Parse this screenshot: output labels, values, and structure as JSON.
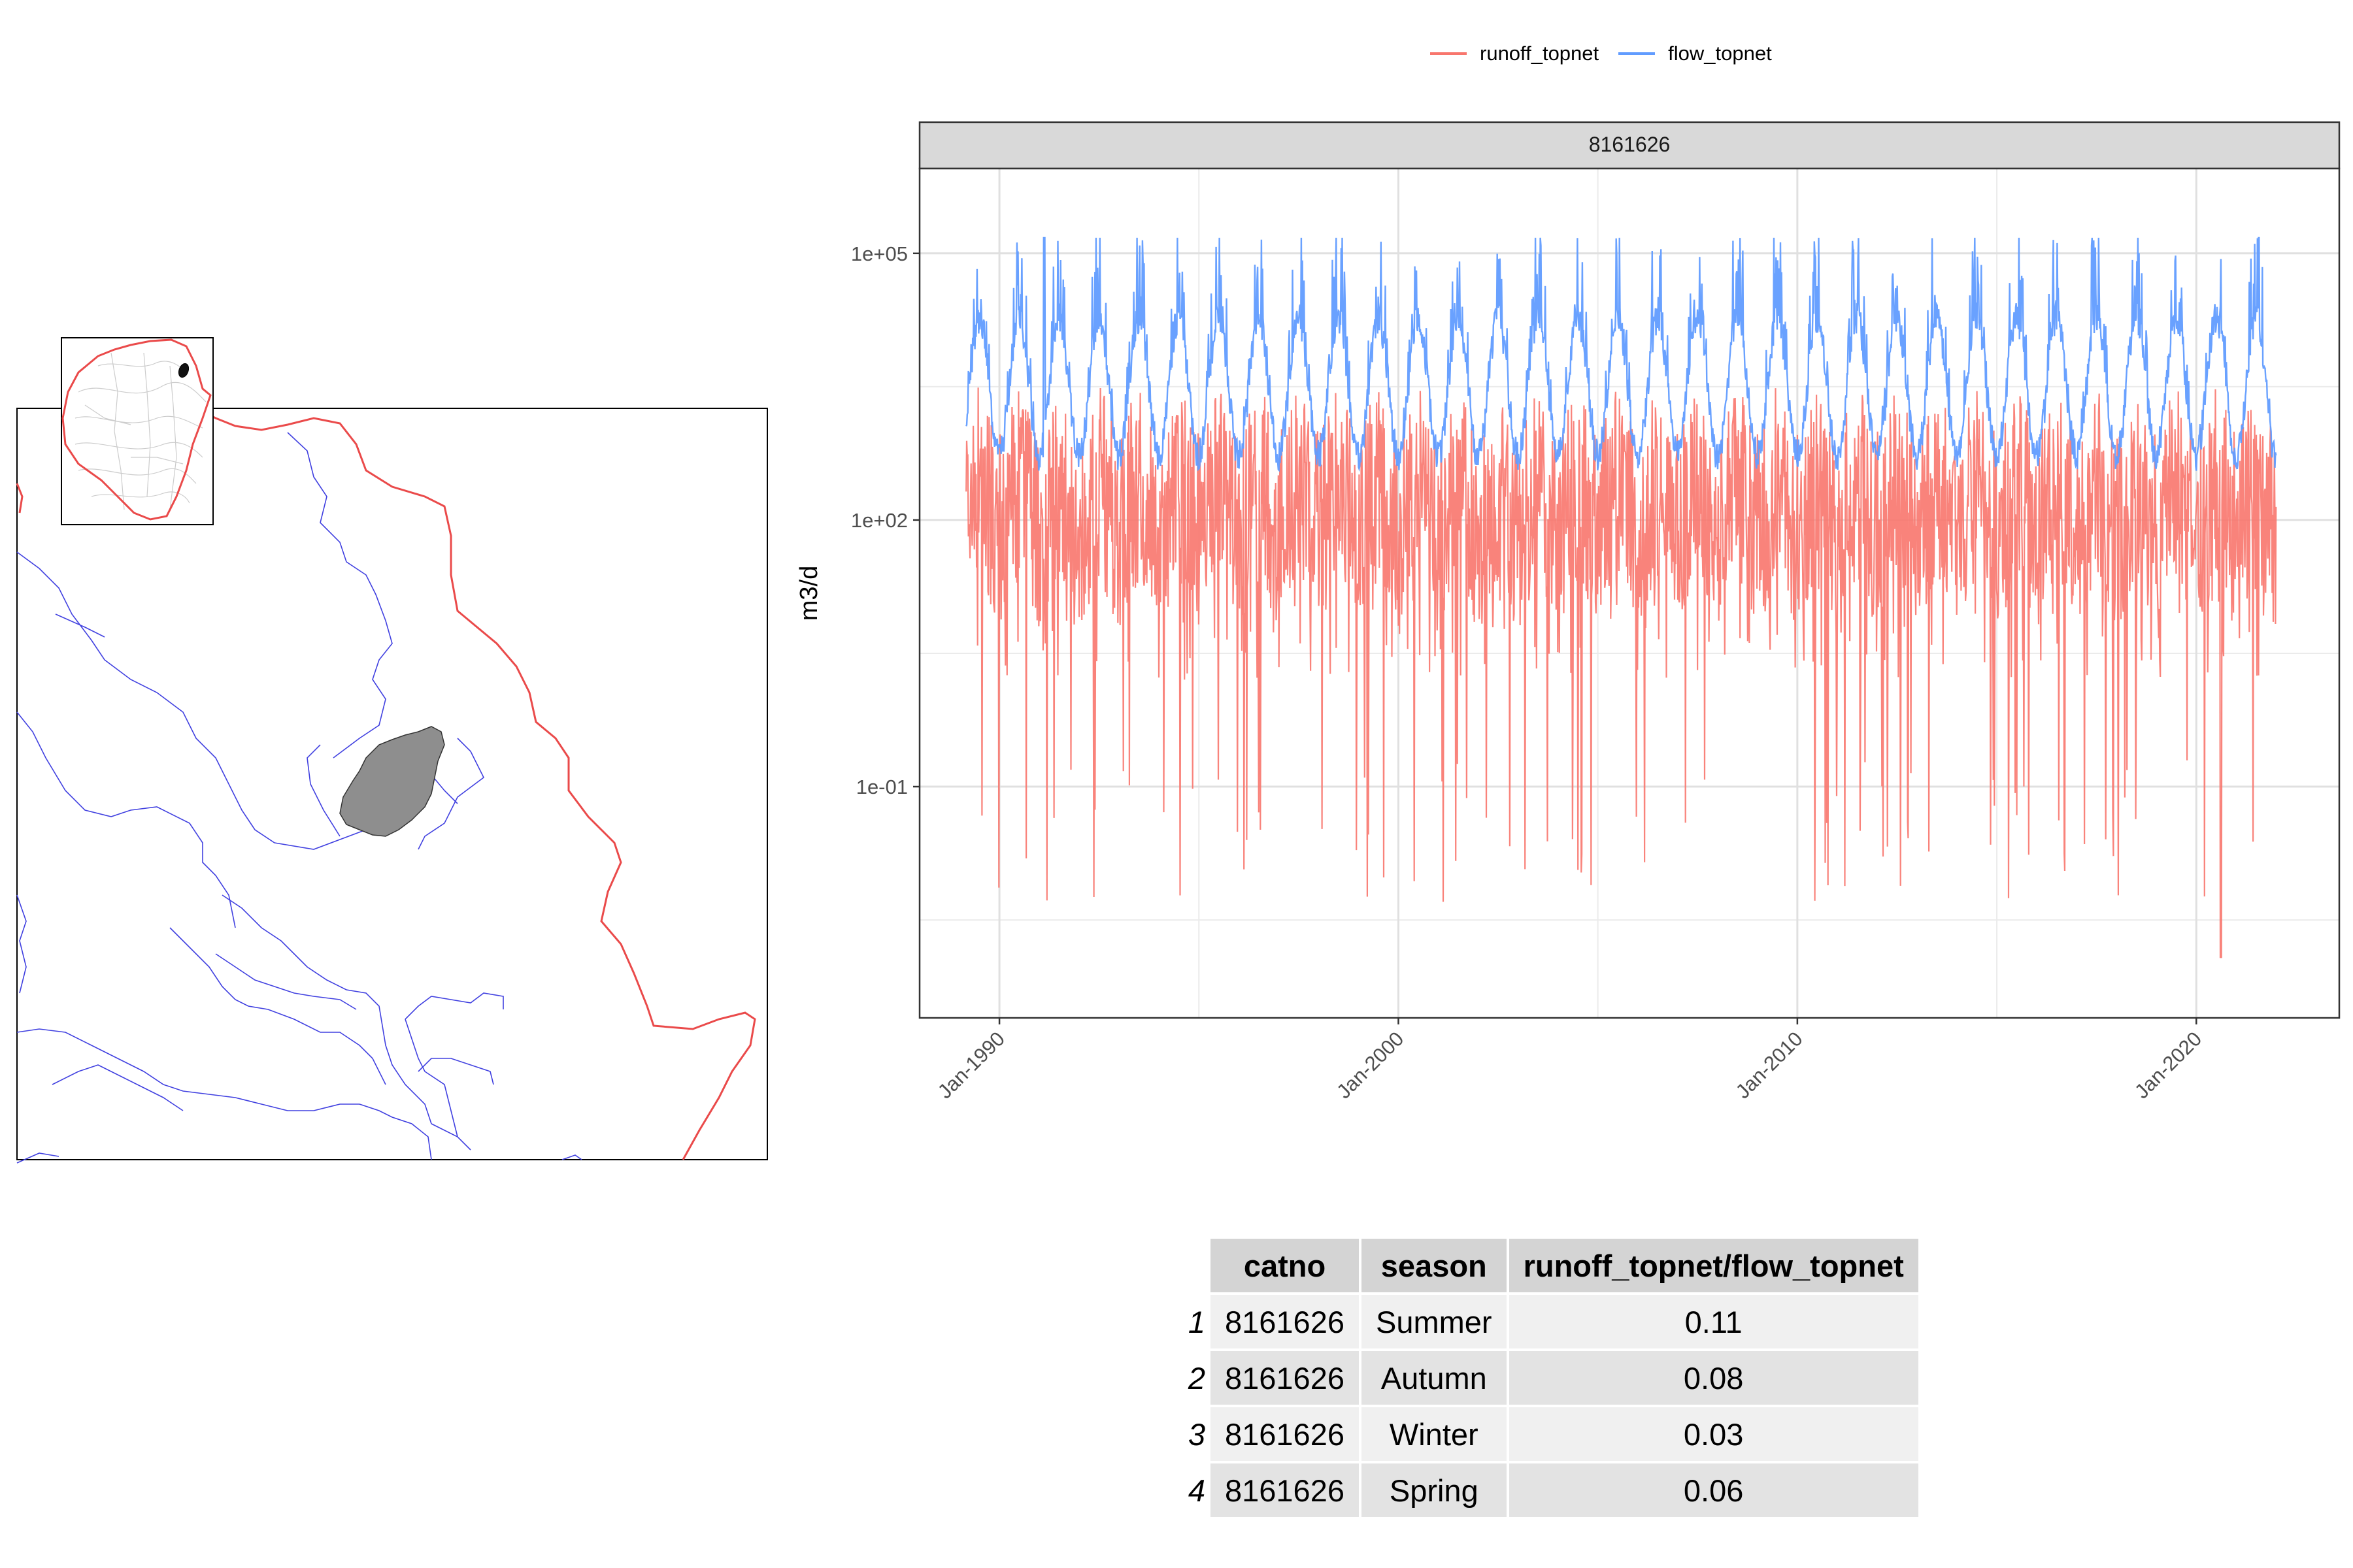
{
  "legend": {
    "items": [
      {
        "label": "runoff_topnet",
        "color": "#f8766d"
      },
      {
        "label": "flow_topnet",
        "color": "#619cff"
      }
    ]
  },
  "chart_data": {
    "type": "line",
    "facet_label": "8161626",
    "ylabel": "m3/d",
    "xlabel": "",
    "y_scale": "log10",
    "y_ticks": [
      {
        "value": 0.1,
        "label": "1e-01"
      },
      {
        "value": 100,
        "label": "1e+02"
      },
      {
        "value": 100000,
        "label": "1e+05"
      }
    ],
    "x_ticks": [
      {
        "value": "1990-01-01",
        "label": "Jan-1990"
      },
      {
        "value": "2000-01-01",
        "label": "Jan-2000"
      },
      {
        "value": "2010-01-01",
        "label": "Jan-2010"
      },
      {
        "value": "2020-01-01",
        "label": "Jan-2020"
      }
    ],
    "x_range": [
      "1988-01-01",
      "2023-08-01"
    ],
    "ylim": [
      0.00025,
      900000
    ],
    "grid": true,
    "legend_position": "top",
    "series": [
      {
        "name": "runoff_topnet",
        "color": "#f8766d",
        "start": "1989-03-01",
        "end": "2021-12-31",
        "typical": 100,
        "upper_range": 1000,
        "lower_range": 5,
        "minimum": 0.0012,
        "minimum_date": "2020-08-15"
      },
      {
        "name": "flow_topnet",
        "color": "#619cff",
        "start": "1989-03-01",
        "end": "2021-12-31",
        "typical": 2000,
        "maximum": 150000,
        "maximum_date": "1991-02-15",
        "minimum": 150,
        "seasonal_peaks": "winter"
      }
    ]
  },
  "table": {
    "headers": [
      "catno",
      "season",
      "runoff_topnet/flow_topnet"
    ],
    "rows": [
      {
        "rowname": "1",
        "catno": "8161626",
        "season": "Summer",
        "ratio": "0.11"
      },
      {
        "rowname": "2",
        "catno": "8161626",
        "season": "Autumn",
        "ratio": "0.08"
      },
      {
        "rowname": "3",
        "catno": "8161626",
        "season": "Winter",
        "ratio": "0.03"
      },
      {
        "rowname": "4",
        "catno": "8161626",
        "season": "Spring",
        "ratio": "0.06"
      }
    ]
  }
}
